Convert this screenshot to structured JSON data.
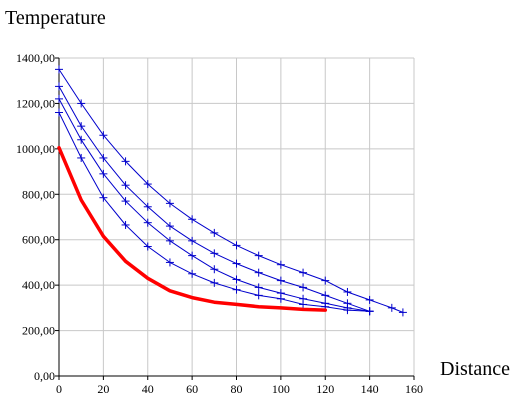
{
  "chart_data": {
    "type": "line",
    "ylabel": "Temperature",
    "xlabel": "Distance",
    "xlim": [
      0,
      160
    ],
    "ylim": [
      0,
      1400
    ],
    "xticks": [
      0,
      20,
      40,
      60,
      80,
      100,
      120,
      140,
      160
    ],
    "yticks": [
      0,
      200,
      400,
      600,
      800,
      1000,
      1200,
      1400
    ],
    "ytick_labels": [
      "0,00",
      "200,00",
      "400,00",
      "600,00",
      "800,00",
      "1000,00",
      "1200,00",
      "1400,00"
    ],
    "grid": true,
    "colors": {
      "series": "#0000cc",
      "highlight": "#ff0000",
      "grid": "#c8c8c8"
    },
    "series": [
      {
        "x": [
          0,
          10,
          20,
          30,
          40,
          50,
          60,
          70,
          80,
          90,
          100,
          110,
          120,
          130,
          140,
          150,
          155
        ],
        "y": [
          1350,
          1200,
          1060,
          945,
          845,
          760,
          690,
          630,
          575,
          530,
          490,
          455,
          420,
          370,
          335,
          300,
          280
        ],
        "color": "#0000cc",
        "markers": true
      },
      {
        "x": [
          0,
          10,
          20,
          30,
          40,
          50,
          60,
          70,
          80,
          90,
          100,
          110,
          120,
          130,
          140
        ],
        "y": [
          1275,
          1100,
          960,
          840,
          745,
          660,
          595,
          540,
          495,
          455,
          420,
          390,
          355,
          320,
          285
        ],
        "color": "#0000cc",
        "markers": true
      },
      {
        "x": [
          0,
          10,
          20,
          30,
          40,
          50,
          60,
          70,
          80,
          90,
          100,
          110,
          120,
          130,
          140
        ],
        "y": [
          1220,
          1040,
          890,
          770,
          675,
          595,
          530,
          470,
          425,
          390,
          365,
          340,
          320,
          300,
          285
        ],
        "color": "#0000cc",
        "markers": true
      },
      {
        "x": [
          0,
          10,
          20,
          30,
          40,
          50,
          60,
          70,
          80,
          90,
          100,
          110,
          120,
          130,
          140
        ],
        "y": [
          1160,
          960,
          785,
          665,
          570,
          500,
          450,
          410,
          380,
          355,
          340,
          315,
          305,
          290,
          285
        ],
        "color": "#0000cc",
        "markers": true
      },
      {
        "x": [
          0,
          10,
          20,
          30,
          40,
          50,
          60,
          70,
          80,
          90,
          100,
          110,
          120
        ],
        "y": [
          1005,
          775,
          615,
          505,
          430,
          375,
          345,
          325,
          315,
          305,
          300,
          293,
          290
        ],
        "color": "#ff0000",
        "markers": false
      }
    ]
  }
}
